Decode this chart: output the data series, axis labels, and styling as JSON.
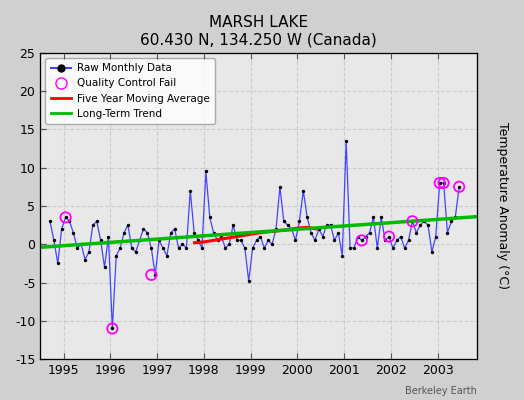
{
  "title": "MARSH LAKE",
  "subtitle": "60.430 N, 134.250 W (Canada)",
  "ylabel": "Temperature Anomaly (°C)",
  "credit": "Berkeley Earth",
  "ylim": [
    -15,
    25
  ],
  "xlim": [
    1994.5,
    2003.83
  ],
  "yticks": [
    -15,
    -10,
    -5,
    0,
    5,
    10,
    15,
    20,
    25
  ],
  "xticks": [
    1995,
    1996,
    1997,
    1998,
    1999,
    2000,
    2001,
    2002,
    2003
  ],
  "plot_bg": "#e8e8e8",
  "fig_bg": "#d0d0d0",
  "raw_x": [
    1994.708,
    1994.792,
    1994.875,
    1994.958,
    1995.042,
    1995.125,
    1995.208,
    1995.292,
    1995.375,
    1995.458,
    1995.542,
    1995.625,
    1995.708,
    1995.792,
    1995.875,
    1995.958,
    1996.042,
    1996.125,
    1996.208,
    1996.292,
    1996.375,
    1996.458,
    1996.542,
    1996.625,
    1996.708,
    1996.792,
    1996.875,
    1996.958,
    1997.042,
    1997.125,
    1997.208,
    1997.292,
    1997.375,
    1997.458,
    1997.542,
    1997.625,
    1997.708,
    1997.792,
    1997.875,
    1997.958,
    1998.042,
    1998.125,
    1998.208,
    1998.292,
    1998.375,
    1998.458,
    1998.542,
    1998.625,
    1998.708,
    1998.792,
    1998.875,
    1998.958,
    1999.042,
    1999.125,
    1999.208,
    1999.292,
    1999.375,
    1999.458,
    1999.542,
    1999.625,
    1999.708,
    1999.792,
    1999.875,
    1999.958,
    2000.042,
    2000.125,
    2000.208,
    2000.292,
    2000.375,
    2000.458,
    2000.542,
    2000.625,
    2000.708,
    2000.792,
    2000.875,
    2000.958,
    2001.042,
    2001.125,
    2001.208,
    2001.292,
    2001.375,
    2001.458,
    2001.542,
    2001.625,
    2001.708,
    2001.792,
    2001.875,
    2001.958,
    2002.042,
    2002.125,
    2002.208,
    2002.292,
    2002.375,
    2002.458,
    2002.542,
    2002.625,
    2002.708,
    2002.792,
    2002.875,
    2002.958,
    2003.042,
    2003.125,
    2003.208,
    2003.292,
    2003.375,
    2003.458
  ],
  "raw_y": [
    3.0,
    0.5,
    -2.5,
    2.0,
    3.5,
    3.0,
    1.5,
    -0.5,
    0.0,
    -2.0,
    -1.0,
    2.5,
    3.0,
    0.5,
    -3.0,
    1.0,
    -11.0,
    -1.5,
    -0.5,
    1.5,
    2.5,
    -0.5,
    -1.0,
    0.5,
    2.0,
    1.5,
    -0.5,
    -4.0,
    0.5,
    -0.5,
    -1.5,
    1.5,
    2.0,
    -0.5,
    0.0,
    -0.5,
    7.0,
    1.5,
    0.5,
    -0.5,
    9.5,
    3.5,
    1.5,
    0.5,
    1.0,
    -0.5,
    0.0,
    2.5,
    0.5,
    0.5,
    -0.5,
    -4.8,
    -0.5,
    0.5,
    1.0,
    -0.5,
    0.5,
    0.0,
    2.0,
    7.5,
    3.0,
    2.5,
    2.0,
    0.5,
    3.0,
    7.0,
    3.5,
    1.5,
    0.5,
    2.0,
    1.0,
    2.5,
    2.5,
    0.5,
    1.5,
    -1.5,
    13.5,
    -0.5,
    -0.5,
    1.0,
    0.5,
    1.0,
    1.5,
    3.5,
    -0.5,
    3.5,
    0.5,
    1.0,
    -0.5,
    0.5,
    1.0,
    -0.5,
    0.5,
    3.0,
    1.5,
    2.5,
    3.0,
    2.5,
    -1.0,
    1.0,
    8.0,
    8.0,
    1.5,
    3.0,
    3.5,
    7.5
  ],
  "qc_fail_x": [
    1995.042,
    1996.042,
    1996.875,
    2001.375,
    2001.958,
    2002.458,
    2003.042,
    2003.125,
    2003.458
  ],
  "qc_fail_y": [
    3.5,
    -11.0,
    -4.0,
    0.5,
    1.0,
    3.0,
    8.0,
    8.0,
    7.5
  ],
  "moving_avg_x": [
    1997.8,
    1998.0,
    1998.2,
    1998.4,
    1998.6,
    1998.8,
    1999.0,
    1999.2,
    1999.5,
    1999.8,
    2000.0,
    2000.2,
    2000.4
  ],
  "moving_avg_y": [
    0.2,
    0.3,
    0.5,
    0.7,
    0.9,
    1.1,
    1.3,
    1.5,
    1.7,
    1.9,
    2.1,
    2.2,
    2.0
  ],
  "trend_x": [
    1994.5,
    2003.83
  ],
  "trend_y": [
    -0.4,
    3.6
  ]
}
